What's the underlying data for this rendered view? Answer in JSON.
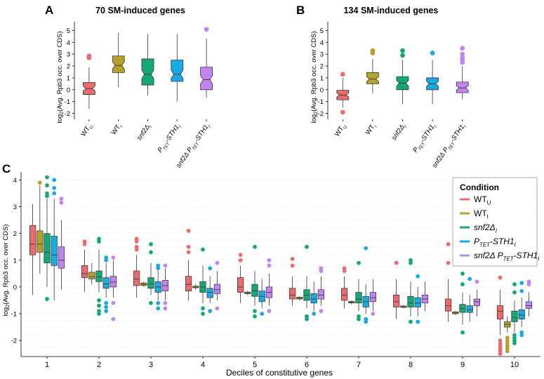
{
  "colors": {
    "wt_u": "#ec6a6e",
    "wt_i": "#b3a12a",
    "snf2": "#12a877",
    "ptet": "#19a9e3",
    "snf2_ptet": "#c384f2"
  },
  "panel_labels": {
    "a": "A",
    "b": "B",
    "c": "C"
  },
  "panel_a": {
    "title": "70 SM-induced genes",
    "ylabel_pre": "log",
    "ylabel_sub": "2",
    "ylabel_post": "(Avg. Rpb3 occ. over CDS)",
    "yticks": [
      -2,
      -1,
      0,
      1,
      2,
      3,
      4,
      5
    ],
    "ylim": [
      -2.5,
      5.5
    ],
    "xticks": [
      {
        "main": "WT",
        "sub": "U",
        "italic": false
      },
      {
        "main": "WT",
        "sub": "I",
        "italic": false
      },
      {
        "main": "snf2Δ",
        "sub": "I",
        "italic": true
      },
      {
        "main": "P",
        "sub": "TET",
        "post": "-STH1",
        "sub2": "I",
        "italic": true
      },
      {
        "main": "snf2Δ P",
        "sub": "TET",
        "post": "-STH1",
        "sub2": "I",
        "italic": true
      }
    ]
  },
  "panel_b": {
    "title": "134 SM-induced genes",
    "ylabel_pre": "log",
    "ylabel_sub": "2",
    "ylabel_post": "(Avg. Rpb3 occ. over CDS)",
    "yticks": [
      -2,
      -1,
      0,
      1,
      2,
      3,
      4,
      5
    ],
    "ylim": [
      -2.5,
      5.5
    ],
    "xticks": [
      {
        "main": "WT",
        "sub": "U",
        "italic": false
      },
      {
        "main": "WT",
        "sub": "I",
        "italic": false
      },
      {
        "main": "snf2Δ",
        "sub": "I",
        "italic": true
      },
      {
        "main": "P",
        "sub": "TET",
        "post": "-STH1",
        "sub2": "I",
        "italic": true
      },
      {
        "main": "snf2Δ P",
        "sub": "TET",
        "post": "-STH1",
        "sub2": "I",
        "italic": true
      }
    ]
  },
  "panel_c": {
    "xlabel": "Deciles of constitutive genes",
    "ylabel_pre": "log",
    "ylabel_sub": "2",
    "ylabel_post": "(Avg. Rpb3 occ. over CDS)",
    "yticks": [
      -2,
      -1,
      0,
      1,
      2,
      3,
      4
    ],
    "ylim": [
      -2.6,
      4.3
    ],
    "deciles": [
      "1",
      "2",
      "3",
      "4",
      "5",
      "6",
      "7",
      "8",
      "9",
      "10"
    ]
  },
  "legend": {
    "title": "Condition",
    "items": [
      {
        "key": "wt_u",
        "main": "WT",
        "sub": "U",
        "post": "",
        "sub2": "",
        "italic": false
      },
      {
        "key": "wt_i",
        "main": "WT",
        "sub": "I",
        "post": "",
        "sub2": "",
        "italic": false
      },
      {
        "key": "snf2",
        "main": "snf2Δ",
        "sub": "I",
        "post": "",
        "sub2": "",
        "italic": true
      },
      {
        "key": "ptet",
        "main": "P",
        "sub": "TET",
        "post": "-STH1",
        "sub2": "I",
        "italic": true
      },
      {
        "key": "snf2_ptet",
        "main": "snf2Δ P",
        "sub": "TET",
        "post": "-STH1",
        "sub2": "I",
        "italic": true
      }
    ]
  },
  "chart_data": [
    {
      "type": "boxplot",
      "title": "70 SM-induced genes",
      "ylabel": "log2(Avg. Rpb3 occ. over CDS)",
      "ylim": [
        -2.5,
        5.5
      ],
      "groups": [
        {
          "key": "wt_u",
          "whislo": -1.6,
          "q1": -0.4,
          "med": 0.1,
          "q3": 0.6,
          "whishi": 1.9,
          "outliers": [
            2.7,
            2.85
          ]
        },
        {
          "key": "wt_i",
          "whislo": 0.2,
          "q1": 1.45,
          "med": 2.05,
          "q3": 2.85,
          "whishi": 4.8,
          "outliers": []
        },
        {
          "key": "snf2",
          "whislo": -0.5,
          "q1": 0.4,
          "med": 1.3,
          "q3": 2.6,
          "whishi": 4.7,
          "outliers": []
        },
        {
          "key": "ptet",
          "whislo": -1.0,
          "q1": 0.7,
          "med": 1.3,
          "q3": 2.5,
          "whishi": 4.7,
          "outliers": []
        },
        {
          "key": "snf2_ptet",
          "whislo": -0.7,
          "q1": 0.0,
          "med": 0.85,
          "q3": 1.9,
          "whishi": 4.3,
          "outliers": [
            5.1
          ]
        }
      ]
    },
    {
      "type": "boxplot",
      "title": "134 SM-induced genes",
      "ylabel": "log2(Avg. Rpb3 occ. over CDS)",
      "ylim": [
        -2.5,
        5.5
      ],
      "groups": [
        {
          "key": "wt_u",
          "whislo": -1.5,
          "q1": -0.85,
          "med": -0.45,
          "q3": -0.05,
          "whishi": 1.0,
          "outliers": [
            1.3,
            -1.9
          ]
        },
        {
          "key": "wt_i",
          "whislo": -0.3,
          "q1": 0.5,
          "med": 0.9,
          "q3": 1.45,
          "whishi": 2.6,
          "outliers": [
            3.1,
            3.3
          ]
        },
        {
          "key": "snf2",
          "whislo": -1.2,
          "q1": 0.0,
          "med": 0.55,
          "q3": 1.1,
          "whishi": 2.5,
          "outliers": [
            2.9,
            3.3
          ]
        },
        {
          "key": "ptet",
          "whislo": -1.2,
          "q1": 0.0,
          "med": 0.5,
          "q3": 1.0,
          "whishi": 2.5,
          "outliers": [
            3.1
          ]
        },
        {
          "key": "snf2_ptet",
          "whislo": -0.8,
          "q1": -0.25,
          "med": 0.15,
          "q3": 0.65,
          "whishi": 2.0,
          "outliers": [
            2.3,
            2.5,
            2.7,
            3.0,
            3.5
          ]
        }
      ]
    },
    {
      "type": "boxplot",
      "xlabel": "Deciles of constitutive genes",
      "ylabel": "log2(Avg. Rpb3 occ. over CDS)",
      "ylim": [
        -2.6,
        4.3
      ],
      "categories": [
        "1",
        "2",
        "3",
        "4",
        "5",
        "6",
        "7",
        "8",
        "9",
        "10"
      ],
      "series_order": [
        "wt_u",
        "wt_i",
        "snf2",
        "ptet",
        "snf2_ptet"
      ],
      "groups": [
        [
          {
            "whislo": -0.3,
            "q1": 1.2,
            "med": 1.6,
            "q3": 2.3,
            "whishi": 3.1,
            "outliers": []
          },
          {
            "whislo": 0.5,
            "q1": 1.3,
            "med": 1.6,
            "q3": 2.1,
            "whishi": 3.8,
            "outliers": [
              3.9
            ]
          },
          {
            "whislo": 0.0,
            "q1": 0.9,
            "med": 1.3,
            "q3": 2.0,
            "whishi": 3.3,
            "outliers": [
              4.1,
              3.8,
              3.5,
              3.4,
              -0.45
            ]
          },
          {
            "whislo": -0.5,
            "q1": 0.8,
            "med": 1.2,
            "q3": 1.9,
            "whishi": 3.3,
            "outliers": [
              4.0,
              3.7,
              3.5
            ]
          },
          {
            "whislo": -0.1,
            "q1": 0.7,
            "med": 1.0,
            "q3": 1.5,
            "whishi": 2.5,
            "outliers": [
              3.3,
              3.15
            ]
          }
        ],
        [
          {
            "whislo": -0.2,
            "q1": 0.35,
            "med": 0.5,
            "q3": 0.8,
            "whishi": 1.4,
            "outliers": [
              1.6,
              1.7
            ]
          },
          {
            "whislo": 0.1,
            "q1": 0.3,
            "med": 0.38,
            "q3": 0.55,
            "whishi": 0.9,
            "outliers": []
          },
          {
            "whislo": -0.2,
            "q1": 0.2,
            "med": 0.38,
            "q3": 0.6,
            "whishi": 1.4,
            "outliers": [
              1.8,
              1.7,
              -0.5,
              -0.7,
              -0.9,
              -1.0
            ]
          },
          {
            "whislo": -0.4,
            "q1": -0.05,
            "med": 0.12,
            "q3": 0.35,
            "whishi": 0.9,
            "outliers": [
              1.1,
              1.0,
              -0.6,
              -0.75,
              -0.9
            ]
          },
          {
            "whislo": -0.4,
            "q1": 0.0,
            "med": 0.18,
            "q3": 0.4,
            "whishi": 1.0,
            "outliers": [
              1.1,
              -0.6,
              -1.2
            ]
          }
        ],
        [
          {
            "whislo": -0.4,
            "q1": 0.05,
            "med": 0.3,
            "q3": 0.6,
            "whishi": 1.2,
            "outliers": [
              1.4,
              1.5,
              1.7,
              1.8
            ]
          },
          {
            "whislo": 0.0,
            "q1": 0.06,
            "med": 0.1,
            "q3": 0.15,
            "whishi": 0.2,
            "outliers": []
          },
          {
            "whislo": -0.3,
            "q1": -0.05,
            "med": 0.12,
            "q3": 0.35,
            "whishi": 0.9,
            "outliers": [
              1.3,
              1.6,
              -0.6
            ]
          },
          {
            "whislo": -0.5,
            "q1": -0.2,
            "med": 0.0,
            "q3": 0.2,
            "whishi": 0.6,
            "outliers": [
              0.8,
              0.7,
              -0.6,
              -0.8
            ]
          },
          {
            "whislo": -0.5,
            "q1": -0.15,
            "med": 0.05,
            "q3": 0.25,
            "whishi": 0.7,
            "outliers": [
              0.8,
              -0.6,
              -0.8
            ]
          }
        ],
        [
          {
            "whislo": -0.5,
            "q1": -0.15,
            "med": 0.1,
            "q3": 0.4,
            "whishi": 1.0,
            "outliers": [
              1.3,
              1.5,
              2.1
            ]
          },
          {
            "whislo": -0.1,
            "q1": -0.03,
            "med": 0.0,
            "q3": 0.03,
            "whishi": 0.1,
            "outliers": []
          },
          {
            "whislo": -0.6,
            "q1": -0.2,
            "med": 0.0,
            "q3": 0.2,
            "whishi": 0.8,
            "outliers": [
              1.4,
              -0.8,
              -1.0
            ]
          },
          {
            "whislo": -0.6,
            "q1": -0.4,
            "med": -0.2,
            "q3": -0.05,
            "whishi": 0.4,
            "outliers": [
              0.7,
              -0.9
            ]
          },
          {
            "whislo": -0.5,
            "q1": -0.25,
            "med": -0.1,
            "q3": 0.1,
            "whishi": 0.6,
            "outliers": [
              0.9,
              -0.8
            ]
          }
        ],
        [
          {
            "whislo": -0.6,
            "q1": -0.2,
            "med": 0.0,
            "q3": 0.35,
            "whishi": 0.8,
            "outliers": [
              1.0,
              1.2
            ]
          },
          {
            "whislo": -0.3,
            "q1": -0.25,
            "med": -0.22,
            "q3": -0.19,
            "whishi": -0.15,
            "outliers": []
          },
          {
            "whislo": -0.7,
            "q1": -0.35,
            "med": -0.15,
            "q3": 0.1,
            "whishi": 0.6,
            "outliers": [
              1.5,
              -0.9,
              -1.1
            ]
          },
          {
            "whislo": -0.8,
            "q1": -0.55,
            "med": -0.35,
            "q3": -0.15,
            "whishi": 0.3,
            "outliers": [
              -1.0
            ]
          },
          {
            "whislo": -0.7,
            "q1": -0.4,
            "med": -0.2,
            "q3": 0.0,
            "whishi": 0.5,
            "outliers": [
              0.8,
              1.0,
              -0.9
            ]
          }
        ],
        [
          {
            "whislo": -0.7,
            "q1": -0.45,
            "med": -0.3,
            "q3": -0.05,
            "whishi": 0.4,
            "outliers": [
              0.8,
              1.05
            ]
          },
          {
            "whislo": -0.5,
            "q1": -0.45,
            "med": -0.42,
            "q3": -0.38,
            "whishi": -0.35,
            "outliers": []
          },
          {
            "whislo": -0.8,
            "q1": -0.5,
            "med": -0.3,
            "q3": -0.1,
            "whishi": 0.4,
            "outliers": [
              1.5,
              -1.1,
              -1.2
            ]
          },
          {
            "whislo": -0.9,
            "q1": -0.6,
            "med": -0.45,
            "q3": -0.25,
            "whishi": 0.2,
            "outliers": [
              -1.0
            ]
          },
          {
            "whislo": -0.7,
            "q1": -0.45,
            "med": -0.3,
            "q3": -0.1,
            "whishi": 0.4,
            "outliers": [
              0.6,
              0.7,
              -0.9
            ]
          }
        ],
        [
          {
            "whislo": -0.8,
            "q1": -0.5,
            "med": -0.3,
            "q3": -0.05,
            "whishi": 0.4,
            "outliers": [
              0.6,
              0.7
            ]
          },
          {
            "whislo": -0.65,
            "q1": -0.6,
            "med": -0.57,
            "q3": -0.54,
            "whishi": -0.5,
            "outliers": []
          },
          {
            "whislo": -0.9,
            "q1": -0.6,
            "med": -0.45,
            "q3": -0.2,
            "whishi": 0.3,
            "outliers": [
              0.9,
              -1.1,
              -1.2
            ]
          },
          {
            "whislo": -1.0,
            "q1": -0.75,
            "med": -0.55,
            "q3": -0.35,
            "whishi": 0.1,
            "outliers": [
              1.45,
              -1.2,
              -1.3
            ]
          },
          {
            "whislo": -0.9,
            "q1": -0.55,
            "med": -0.4,
            "q3": -0.2,
            "whishi": 0.3,
            "outliers": [
              -1.0
            ]
          }
        ],
        [
          {
            "whislo": -1.2,
            "q1": -0.75,
            "med": -0.55,
            "q3": -0.3,
            "whishi": 0.3,
            "outliers": [
              0.9
            ]
          },
          {
            "whislo": -0.8,
            "q1": -0.76,
            "med": -0.74,
            "q3": -0.71,
            "whishi": -0.68,
            "outliers": []
          },
          {
            "whislo": -1.1,
            "q1": -0.75,
            "med": -0.6,
            "q3": -0.35,
            "whishi": 0.2,
            "outliers": [
              0.9,
              1.0,
              -1.3
            ]
          },
          {
            "whislo": -1.1,
            "q1": -0.75,
            "med": -0.6,
            "q3": -0.4,
            "whishi": 0.0,
            "outliers": [
              0.4,
              -1.3
            ]
          },
          {
            "whislo": -0.9,
            "q1": -0.6,
            "med": -0.45,
            "q3": -0.3,
            "whishi": 0.2,
            "outliers": []
          }
        ],
        [
          {
            "whislo": -1.3,
            "q1": -0.9,
            "med": -0.7,
            "q3": -0.45,
            "whishi": 0.3,
            "outliers": [
              0.9,
              1.6
            ]
          },
          {
            "whislo": -1.05,
            "q1": -1.0,
            "med": -0.97,
            "q3": -0.93,
            "whishi": -0.9,
            "outliers": []
          },
          {
            "whislo": -1.4,
            "q1": -0.95,
            "med": -0.8,
            "q3": -0.65,
            "whishi": -0.2,
            "outliers": [
              0.5,
              0.1,
              -1.7
            ]
          },
          {
            "whislo": -1.3,
            "q1": -0.95,
            "med": -0.85,
            "q3": -0.7,
            "whishi": -0.3,
            "outliers": [
              0.3
            ]
          },
          {
            "whislo": -1.1,
            "q1": -0.7,
            "med": -0.55,
            "q3": -0.45,
            "whishi": -0.1,
            "outliers": [
              0.2
            ]
          }
        ],
        [
          {
            "whislo": -1.8,
            "q1": -1.2,
            "med": -0.9,
            "q3": -0.7,
            "whishi": -0.1,
            "outliers": [
              0.35,
              -2.0,
              -2.1,
              -2.2,
              -2.3,
              -2.4,
              -2.5
            ]
          },
          {
            "whislo": -1.7,
            "q1": -1.5,
            "med": -1.4,
            "q3": -1.3,
            "whishi": -1.1,
            "outliers": [
              -1.9,
              -2.0,
              -2.1,
              -2.2,
              -2.3,
              -2.4
            ]
          },
          {
            "whislo": -1.7,
            "q1": -1.3,
            "med": -1.15,
            "q3": -0.9,
            "whishi": -0.5,
            "outliers": [
              -0.2,
              0.1,
              -1.8,
              -1.9,
              -2.0,
              -2.1
            ]
          },
          {
            "whislo": -1.5,
            "q1": -1.2,
            "med": -1.05,
            "q3": -0.85,
            "whishi": -0.4,
            "outliers": [
              -0.15,
              0.15,
              -1.7,
              -1.8
            ]
          },
          {
            "whislo": -1.1,
            "q1": -0.8,
            "med": -0.7,
            "q3": -0.55,
            "whishi": -0.2,
            "outliers": [
              0.1,
              0.2
            ]
          }
        ]
      ]
    }
  ]
}
